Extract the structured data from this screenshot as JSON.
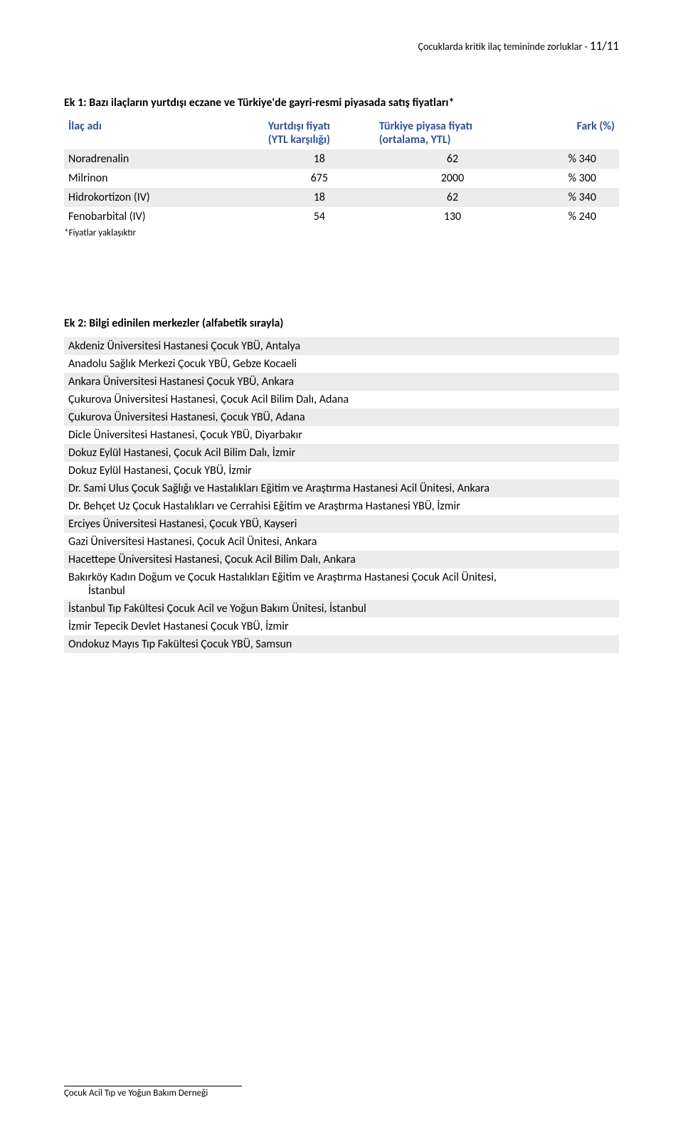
{
  "header": {
    "prefix": "Çocuklarda kritik ilaç temininde zorluklar -  ",
    "page": "11/11"
  },
  "table1": {
    "title": "Ek 1: Bazı ilaçların yurtdışı eczane ve Türkiye'de gayri-resmi piyasada satış fiyatları*",
    "head": {
      "drug": "İlaç adı",
      "abroad_l1": "Yurtdışı fiyatı",
      "abroad_l2": "(YTL karşılığı)",
      "turkey_l1": "Türkiye piyasa fiyatı",
      "turkey_l2": "(ortalama, YTL)",
      "diff": "Fark (%)"
    },
    "rows": [
      {
        "drug": "Noradrenalin",
        "abroad": "18",
        "turkey": "62",
        "diff": "% 340"
      },
      {
        "drug": "Milrinon",
        "abroad": "675",
        "turkey": "2000",
        "diff": "% 300"
      },
      {
        "drug": "Hidrokortizon (IV)",
        "abroad": "18",
        "turkey": "62",
        "diff": "% 340"
      },
      {
        "drug": "Fenobarbital (IV)",
        "abroad": "54",
        "turkey": "130",
        "diff": "% 240"
      }
    ],
    "footnote": "*Fiyatlar yaklaşıktır"
  },
  "table2": {
    "title": "Ek 2: Bilgi edinilen merkezler (alfabetik sırayla)",
    "rows": [
      {
        "shade": true,
        "text": "Akdeniz Üniversitesi Hastanesi Çocuk YBÜ, Antalya"
      },
      {
        "shade": false,
        "text": "Anadolu Sağlık Merkezi Çocuk YBÜ, Gebze Kocaeli"
      },
      {
        "shade": true,
        "text": "Ankara Üniversitesi Hastanesi Çocuk YBÜ, Ankara"
      },
      {
        "shade": false,
        "text": "Çukurova Üniversitesi Hastanesi, Çocuk Acil Bilim Dalı, Adana"
      },
      {
        "shade": true,
        "text": "Çukurova Üniversitesi Hastanesi, Çocuk YBÜ, Adana"
      },
      {
        "shade": false,
        "text": "Dicle Üniversitesi Hastanesi, Çocuk YBÜ, Diyarbakır"
      },
      {
        "shade": true,
        "text": "Dokuz Eylül Hastanesi, Çocuk Acil Bilim Dalı, İzmir"
      },
      {
        "shade": false,
        "text": "Dokuz Eylül Hastanesi, Çocuk YBÜ, İzmir"
      },
      {
        "shade": true,
        "text": "Dr. Sami Ulus Çocuk Sağlığı ve Hastalıkları Eğitim ve Araştırma Hastanesi Acil Ünitesi, Ankara"
      },
      {
        "shade": false,
        "text": "Dr. Behçet Uz Çocuk Hastalıkları ve Cerrahisi Eğitim ve Araştırma Hastanesi YBÜ, İzmir"
      },
      {
        "shade": true,
        "text": "Erciyes Üniversitesi Hastanesi, Çocuk YBÜ, Kayseri"
      },
      {
        "shade": false,
        "text": "Gazi Üniversitesi Hastanesi, Çocuk Acil Ünitesi, Ankara"
      },
      {
        "shade": true,
        "text": "Hacettepe Üniversitesi Hastanesi, Çocuk Acil Bilim Dalı, Ankara"
      },
      {
        "shade": false,
        "text": "Bakırköy Kadın Doğum ve Çocuk Hastalıkları Eğitim ve Araştırma Hastanesi Çocuk Acil Ünitesi,",
        "cont": "İstanbul"
      },
      {
        "shade": true,
        "text": "İstanbul Tıp Fakültesi Çocuk Acil ve Yoğun Bakım Ünitesi, İstanbul"
      },
      {
        "shade": false,
        "text": "İzmir Tepecik Devlet Hastanesi Çocuk YBÜ, İzmir"
      },
      {
        "shade": true,
        "text": "Ondokuz Mayıs Tıp Fakültesi Çocuk YBÜ, Samsun"
      }
    ]
  },
  "footer": "Çocuk Acil Tıp ve Yoğun Bakım Derneği"
}
